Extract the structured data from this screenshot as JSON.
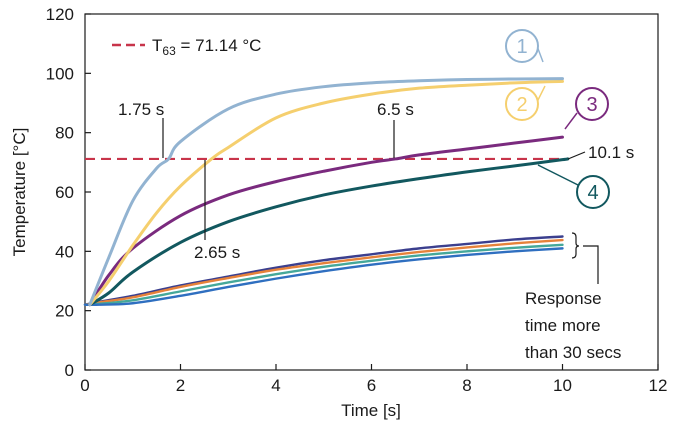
{
  "chart_data": {
    "type": "line",
    "xlabel": "Time [s]",
    "ylabel": "Temperature [°C]",
    "xlim": [
      0,
      12
    ],
    "ylim": [
      0,
      120
    ],
    "xticks": [
      "0",
      "2",
      "4",
      "6",
      "8",
      "10",
      "12"
    ],
    "yticks": [
      "0",
      "20",
      "40",
      "60",
      "80",
      "100",
      "120"
    ],
    "grid": false,
    "legend": {
      "label_main": "T",
      "label_sub": "63",
      "label_rest": " = 71.14 °C",
      "color": "#c8344a",
      "placement": "top-left"
    },
    "threshold": {
      "y": 71.14,
      "x_range": [
        0,
        10
      ],
      "color": "#c8344a"
    },
    "series": [
      {
        "label": "1",
        "color": "#92b3d1",
        "x": [
          0.1,
          0.5,
          1,
          1.5,
          1.75,
          2,
          3,
          4,
          5,
          6,
          7,
          8,
          9,
          10
        ],
        "y": [
          22,
          38,
          57,
          68,
          71.14,
          77,
          88,
          93,
          95.5,
          96.8,
          97.5,
          97.9,
          98.1,
          98.2
        ]
      },
      {
        "label": "2",
        "color": "#f5cf6e",
        "x": [
          0.1,
          0.5,
          1,
          1.5,
          2,
          2.65,
          3,
          4,
          5,
          6,
          7,
          8,
          9,
          10
        ],
        "y": [
          22,
          30,
          42,
          53,
          62,
          71.14,
          75,
          85,
          90,
          93,
          95,
          96,
          96.8,
          97.3
        ]
      },
      {
        "label": "3",
        "color": "#7a2a7e",
        "x": [
          0.1,
          0.5,
          1,
          2,
          3,
          4,
          5,
          6,
          6.5,
          7,
          8,
          9,
          10
        ],
        "y": [
          22,
          32,
          41,
          52,
          59,
          63.5,
          67,
          70,
          71.14,
          72.5,
          74.5,
          76.5,
          78.5
        ]
      },
      {
        "label": "4",
        "color": "#12585f",
        "x": [
          0.1,
          0.5,
          1,
          2,
          3,
          4,
          5,
          6,
          7,
          8,
          9,
          10,
          10.1
        ],
        "y": [
          22,
          26,
          33,
          43,
          50,
          55,
          59,
          62,
          64.5,
          66.8,
          68.8,
          70.9,
          71.14
        ]
      },
      {
        "color": "#3b3f8e",
        "x": [
          0,
          0.3,
          1,
          2,
          3,
          4,
          5,
          6,
          7,
          8,
          9,
          10
        ],
        "y": [
          22,
          23,
          25,
          28.5,
          31.5,
          34.5,
          37,
          39,
          41,
          42.5,
          44,
          45
        ]
      },
      {
        "color": "#e6823a",
        "x": [
          0,
          0.3,
          1,
          2,
          3,
          4,
          5,
          6,
          7,
          8,
          9,
          10
        ],
        "y": [
          22,
          22.8,
          24.5,
          28,
          31,
          33.8,
          36,
          38,
          39.8,
          41.3,
          42.7,
          43.8
        ]
      },
      {
        "color": "#45a89a",
        "x": [
          0,
          0.3,
          1,
          2,
          3,
          4,
          5,
          6,
          7,
          8,
          9,
          10
        ],
        "y": [
          22,
          22.3,
          23.5,
          26.5,
          29.5,
          32.3,
          34.8,
          36.8,
          38.6,
          40,
          41.2,
          42.2
        ]
      },
      {
        "color": "#2f6fc0",
        "x": [
          0,
          0.3,
          1,
          2,
          3,
          4,
          5,
          6,
          7,
          8,
          9,
          10
        ],
        "y": [
          22,
          22,
          22.5,
          25,
          28,
          30.8,
          33.3,
          35.5,
          37.3,
          38.8,
          40,
          41
        ]
      }
    ],
    "annotations": {
      "t1": "1.75 s",
      "t2": "2.65 s",
      "t3": "6.5 s",
      "t4": "10.1 s",
      "note_line1": "Response",
      "note_line2": "time more",
      "note_line3": "than 30 secs"
    }
  }
}
